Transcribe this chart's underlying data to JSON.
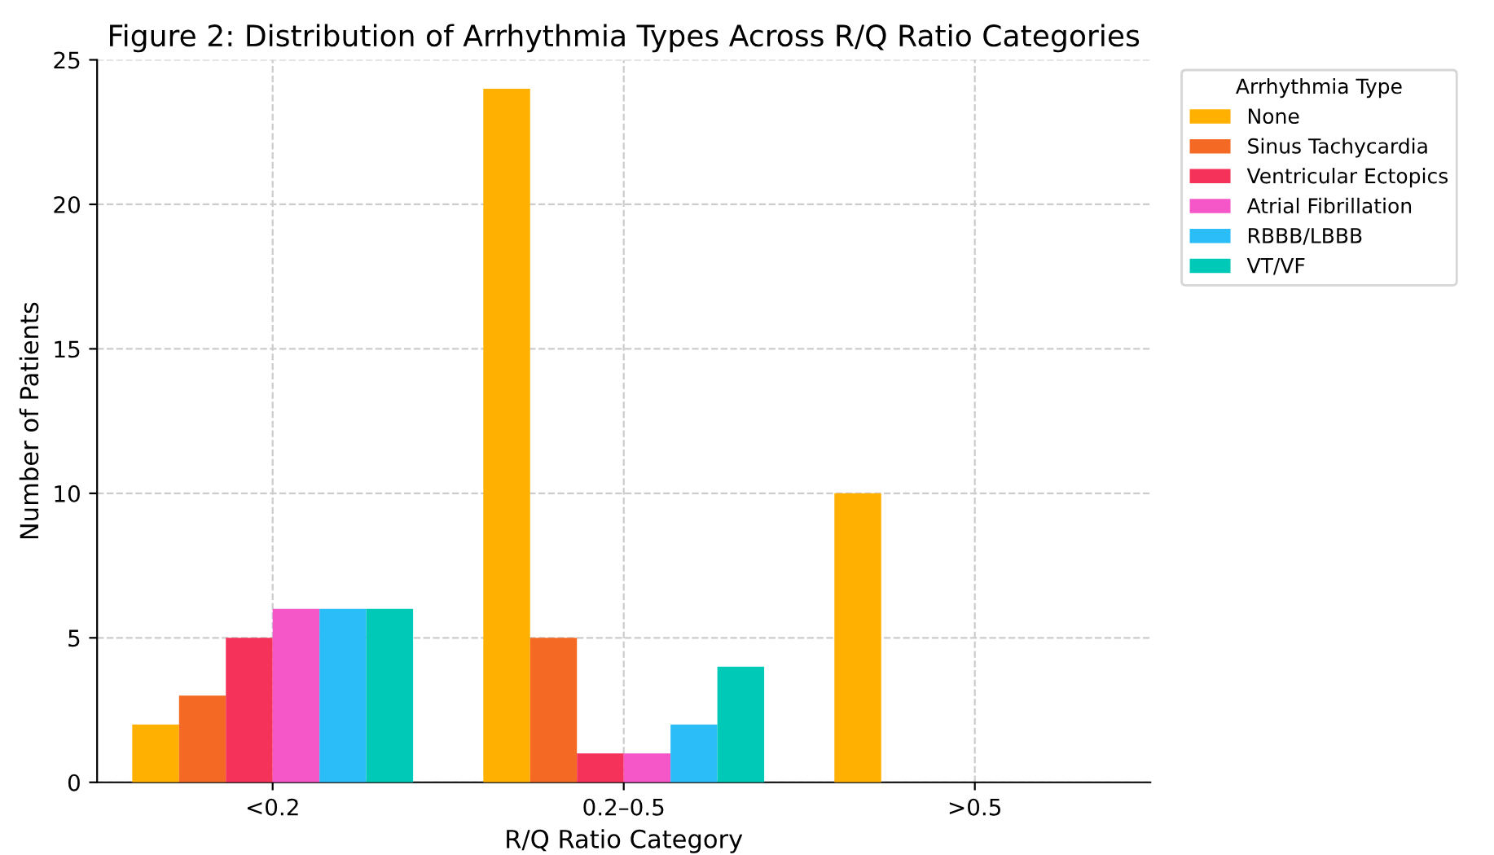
{
  "chart_data": {
    "type": "bar",
    "title": "Figure 2: Distribution of Arrhythmia Types Across R/Q Ratio Categories",
    "xlabel": "R/Q Ratio Category",
    "ylabel": "Number of Patients",
    "legend_title": "Arrhythmia Type",
    "categories": [
      "<0.2",
      "0.2–0.5",
      ">0.5"
    ],
    "series": [
      {
        "name": "None",
        "color": "#ffb000",
        "values": [
          2,
          24,
          10
        ]
      },
      {
        "name": "Sinus Tachycardia",
        "color": "#f46a25",
        "values": [
          3,
          5,
          0
        ]
      },
      {
        "name": "Ventricular Ectopics",
        "color": "#f5325a",
        "values": [
          5,
          1,
          0
        ]
      },
      {
        "name": "Atrial Fibrillation",
        "color": "#f557c8",
        "values": [
          6,
          1,
          0
        ]
      },
      {
        "name": "RBBB/LBBB",
        "color": "#2bbdf7",
        "values": [
          6,
          2,
          0
        ]
      },
      {
        "name": "VT/VF",
        "color": "#00c9b7",
        "values": [
          6,
          4,
          0
        ]
      }
    ],
    "ylim": [
      0,
      25
    ],
    "yticks": [
      0,
      5,
      10,
      15,
      20,
      25
    ],
    "grid": true,
    "legend": "top right"
  }
}
